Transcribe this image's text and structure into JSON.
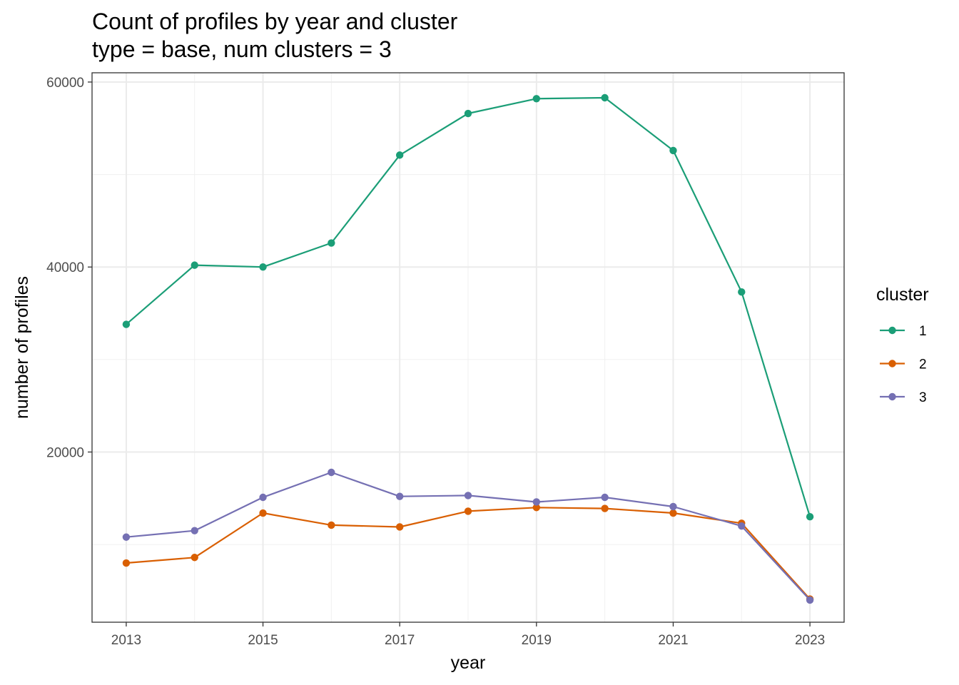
{
  "chart_data": {
    "type": "line",
    "title": "Count of profiles by year and cluster",
    "subtitle": "type = base, num clusters = 3",
    "xlabel": "year",
    "ylabel": "number of profiles",
    "x": [
      2013,
      2014,
      2015,
      2016,
      2017,
      2018,
      2019,
      2020,
      2021,
      2022,
      2023
    ],
    "x_ticks": [
      2013,
      2015,
      2017,
      2019,
      2021,
      2023
    ],
    "y_ticks": [
      20000,
      40000,
      60000
    ],
    "xlim": [
      2012.5,
      2023.5
    ],
    "ylim": [
      1600,
      61000
    ],
    "grid": true,
    "legend": {
      "title": "cluster",
      "position": "right"
    },
    "series": [
      {
        "name": "1",
        "color": "#1b9e77",
        "values": [
          33800,
          40200,
          40000,
          42600,
          52100,
          56600,
          58200,
          58300,
          52600,
          37300,
          13000
        ]
      },
      {
        "name": "2",
        "color": "#d95f02",
        "values": [
          8000,
          8600,
          13400,
          12100,
          11900,
          13600,
          14000,
          13900,
          13400,
          12300,
          4100
        ]
      },
      {
        "name": "3",
        "color": "#7570b3",
        "values": [
          10800,
          11500,
          15100,
          17800,
          15200,
          15300,
          14600,
          15100,
          14100,
          12000,
          4000
        ]
      }
    ]
  }
}
